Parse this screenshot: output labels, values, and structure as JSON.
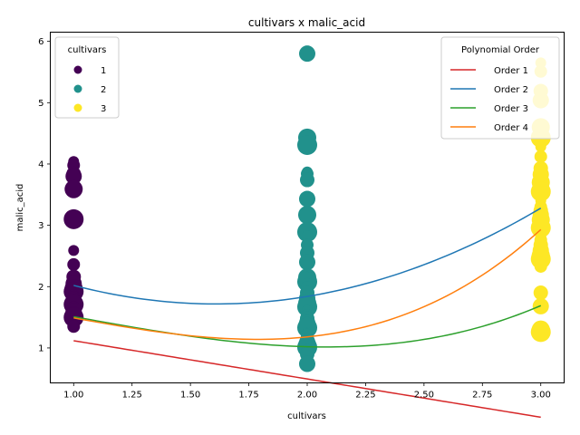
{
  "chart_data": {
    "type": "scatter",
    "title": "cultivars x malic_acid",
    "xlabel": "cultivars",
    "ylabel": "malic_acid",
    "xlim": [
      0.9,
      3.1
    ],
    "ylim": [
      0.43,
      6.15
    ],
    "xticks": [
      "1.00",
      "1.25",
      "1.50",
      "1.75",
      "2.00",
      "2.25",
      "2.50",
      "2.75",
      "3.00"
    ],
    "xtick_values": [
      1.0,
      1.25,
      1.5,
      1.75,
      2.0,
      2.25,
      2.5,
      2.75,
      3.0
    ],
    "yticks": [
      "1",
      "2",
      "3",
      "4",
      "5",
      "6"
    ],
    "ytick_values": [
      1,
      2,
      3,
      4,
      5,
      6
    ],
    "grid": false,
    "legends": [
      {
        "title": "cultivars",
        "placement": "top-left",
        "entries": [
          {
            "label": "1",
            "color": "#440154"
          },
          {
            "label": "2",
            "color": "#21918c"
          },
          {
            "label": "3",
            "color": "#fde725"
          }
        ]
      },
      {
        "title": "Polynomial Order",
        "placement": "top-right",
        "entries": [
          {
            "label": "Order 1",
            "color": "#d62728"
          },
          {
            "label": "Order 2",
            "color": "#1f77b4"
          },
          {
            "label": "Order 3",
            "color": "#2ca02c"
          },
          {
            "label": "Order 4",
            "color": "#ff7f0e"
          }
        ]
      }
    ],
    "scatter_series": [
      {
        "name": "1",
        "color": "#440154",
        "x": 1,
        "points": [
          4.04,
          3.98,
          3.84,
          3.8,
          3.59,
          3.1,
          2.59,
          2.36,
          2.16,
          2.05,
          1.97,
          1.92,
          1.87,
          1.83,
          1.81,
          1.77,
          1.73,
          1.71,
          1.68,
          1.65,
          1.64,
          1.6,
          1.53,
          1.5,
          1.43,
          1.35
        ]
      },
      {
        "name": "2",
        "color": "#21918c",
        "x": 2,
        "points": [
          5.8,
          4.43,
          4.31,
          3.87,
          3.84,
          3.74,
          3.43,
          3.17,
          2.89,
          2.83,
          2.68,
          2.55,
          2.4,
          2.15,
          2.08,
          2.05,
          1.99,
          1.9,
          1.81,
          1.73,
          1.67,
          1.61,
          1.53,
          1.48,
          1.41,
          1.36,
          1.33,
          1.25,
          1.21,
          1.13,
          1.09,
          1.05,
          1.01,
          0.98,
          0.94,
          0.9,
          0.74
        ]
      },
      {
        "name": "3",
        "color": "#fde725",
        "x": 3,
        "points": [
          5.65,
          5.51,
          5.19,
          5.04,
          4.6,
          4.43,
          4.28,
          4.12,
          3.93,
          3.83,
          3.7,
          3.55,
          3.4,
          3.3,
          3.24,
          3.17,
          3.09,
          2.96,
          2.81,
          2.76,
          2.68,
          2.59,
          2.51,
          2.45,
          2.4,
          2.33,
          1.9,
          1.68,
          1.3,
          1.26
        ]
      }
    ],
    "fit_lines": [
      {
        "name": "Order 1",
        "color": "#d62728",
        "coefficients": [
          1.742,
          -0.624,
          0,
          0,
          0
        ]
      },
      {
        "name": "Order 2",
        "color": "#1f77b4",
        "coefficients": [
          3.82,
          -2.61,
          0.81,
          0,
          0
        ]
      },
      {
        "name": "Order 3",
        "color": "#2ca02c",
        "coefficients": [
          2.02,
          -0.14,
          -0.56,
          0.19,
          0
        ]
      },
      {
        "name": "Order 4",
        "color": "#ff7f0e",
        "coefficients": [
          2.0,
          -0.05,
          -0.72,
          0.25,
          0.01
        ]
      }
    ]
  }
}
